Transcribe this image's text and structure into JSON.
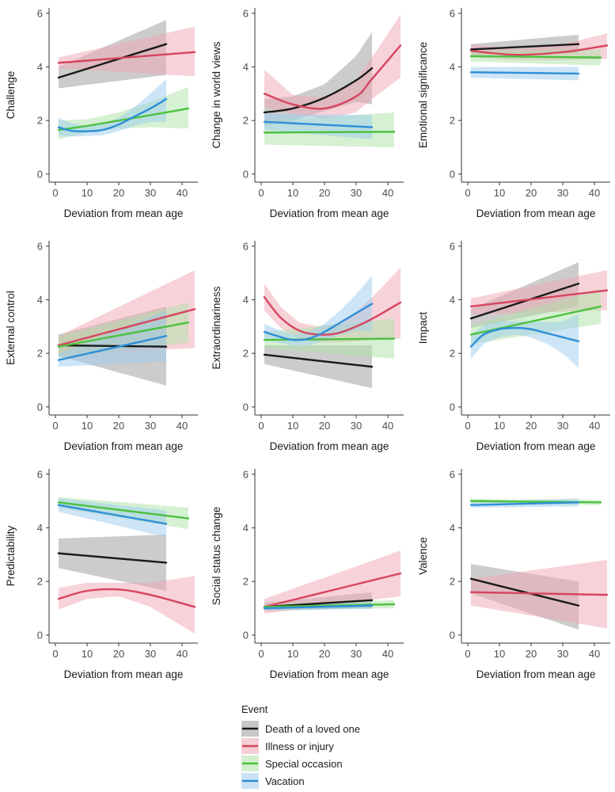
{
  "chart_data": {
    "type": "line",
    "description_type": "faceted smooth lines with confidence ribbons",
    "x_label": "Deviation from mean age",
    "x_ticks": [
      0,
      10,
      20,
      30,
      40
    ],
    "x_range": [
      -2,
      45
    ],
    "y_ticks": [
      0,
      2,
      4,
      6
    ],
    "y_range": [
      -0.3,
      6.2
    ],
    "legend": {
      "title": "Event",
      "entries": [
        {
          "name": "Death of a loved one",
          "color": "#1a1a1a",
          "band": "#9a9a9a"
        },
        {
          "name": "Illness or injury",
          "color": "#d6455f",
          "band": "#efa6b3"
        },
        {
          "name": "Special occasion",
          "color": "#4cc13f",
          "band": "#aee2a6"
        },
        {
          "name": "Vacation",
          "color": "#2e8fd6",
          "band": "#9cccee"
        }
      ]
    },
    "panels": [
      {
        "ylabel": "Challenge",
        "series": [
          {
            "event": "Death of a loved one",
            "x": [
              1,
              35
            ],
            "y": [
              3.6,
              4.85
            ],
            "lo": [
              3.2,
              3.7
            ],
            "hi": [
              4.0,
              5.75
            ]
          },
          {
            "event": "Illness or injury",
            "x": [
              1,
              44
            ],
            "y": [
              4.15,
              4.55
            ],
            "lo": [
              3.95,
              3.65
            ],
            "hi": [
              4.35,
              5.5
            ]
          },
          {
            "event": "Special occasion",
            "x": [
              1,
              10,
              20,
              30,
              42
            ],
            "y": [
              1.65,
              1.8,
              2.0,
              2.2,
              2.45
            ],
            "lo": [
              1.3,
              1.55,
              1.7,
              1.75,
              1.7
            ],
            "hi": [
              2.0,
              2.05,
              2.3,
              2.7,
              3.25
            ]
          },
          {
            "event": "Vacation",
            "x": [
              1,
              5,
              10,
              15,
              20,
              25,
              30,
              35
            ],
            "y": [
              1.75,
              1.62,
              1.6,
              1.65,
              1.85,
              2.15,
              2.45,
              2.8
            ],
            "lo": [
              1.45,
              1.4,
              1.42,
              1.45,
              1.6,
              1.8,
              1.95,
              1.95
            ],
            "hi": [
              2.1,
              1.9,
              1.8,
              1.85,
              2.1,
              2.5,
              3.0,
              3.55
            ]
          }
        ]
      },
      {
        "ylabel": "Change in world views",
        "series": [
          {
            "event": "Death of a loved one",
            "x": [
              1,
              10,
              20,
              30,
              35
            ],
            "y": [
              2.3,
              2.45,
              2.85,
              3.5,
              3.95
            ],
            "lo": [
              1.8,
              2.0,
              2.35,
              2.7,
              2.6
            ],
            "hi": [
              2.8,
              2.9,
              3.35,
              4.4,
              5.3
            ]
          },
          {
            "event": "Illness or injury",
            "x": [
              1,
              10,
              20,
              30,
              35,
              44
            ],
            "y": [
              3.0,
              2.6,
              2.45,
              2.9,
              3.55,
              4.8
            ],
            "lo": [
              2.5,
              2.25,
              2.05,
              2.3,
              2.8,
              3.6
            ],
            "hi": [
              3.9,
              2.95,
              2.85,
              3.5,
              4.35,
              5.95
            ]
          },
          {
            "event": "Special occasion",
            "x": [
              1,
              42
            ],
            "y": [
              1.55,
              1.58
            ],
            "lo": [
              1.1,
              1.0
            ],
            "hi": [
              2.0,
              2.3
            ]
          },
          {
            "event": "Vacation",
            "x": [
              1,
              35
            ],
            "y": [
              1.95,
              1.75
            ],
            "lo": [
              1.65,
              1.3
            ],
            "hi": [
              2.25,
              2.2
            ]
          }
        ]
      },
      {
        "ylabel": "Emotional significance",
        "series": [
          {
            "event": "Death of a loved one",
            "x": [
              1,
              35
            ],
            "y": [
              4.65,
              4.85
            ],
            "lo": [
              4.45,
              4.5
            ],
            "hi": [
              4.85,
              5.2
            ]
          },
          {
            "event": "Illness or injury",
            "x": [
              1,
              15,
              30,
              44
            ],
            "y": [
              4.6,
              4.45,
              4.55,
              4.8
            ],
            "lo": [
              4.35,
              4.25,
              4.25,
              4.3
            ],
            "hi": [
              4.85,
              4.65,
              4.85,
              5.25
            ]
          },
          {
            "event": "Special occasion",
            "x": [
              1,
              42
            ],
            "y": [
              4.4,
              4.35
            ],
            "lo": [
              4.2,
              4.05
            ],
            "hi": [
              4.6,
              4.65
            ]
          },
          {
            "event": "Vacation",
            "x": [
              1,
              35
            ],
            "y": [
              3.8,
              3.75
            ],
            "lo": [
              3.6,
              3.5
            ],
            "hi": [
              4.0,
              4.0
            ]
          }
        ]
      },
      {
        "ylabel": "External control",
        "series": [
          {
            "event": "Death of a loved one",
            "x": [
              1,
              35
            ],
            "y": [
              2.3,
              2.25
            ],
            "lo": [
              1.9,
              0.8
            ],
            "hi": [
              2.7,
              3.75
            ]
          },
          {
            "event": "Illness or injury",
            "x": [
              1,
              44
            ],
            "y": [
              2.3,
              3.65
            ],
            "lo": [
              1.95,
              2.2
            ],
            "hi": [
              2.65,
              5.1
            ]
          },
          {
            "event": "Special occasion",
            "x": [
              1,
              42
            ],
            "y": [
              2.25,
              3.15
            ],
            "lo": [
              1.85,
              2.4
            ],
            "hi": [
              2.65,
              3.9
            ]
          },
          {
            "event": "Vacation",
            "x": [
              1,
              35
            ],
            "y": [
              1.75,
              2.65
            ],
            "lo": [
              1.5,
              1.7
            ],
            "hi": [
              2.0,
              3.6
            ]
          }
        ]
      },
      {
        "ylabel": "Extraordinariness",
        "series": [
          {
            "event": "Death of a loved one",
            "x": [
              1,
              35
            ],
            "y": [
              1.95,
              1.5
            ],
            "lo": [
              1.6,
              0.7
            ],
            "hi": [
              2.3,
              2.3
            ]
          },
          {
            "event": "Illness or injury",
            "x": [
              1,
              6,
              12,
              18,
              24,
              30,
              36,
              44
            ],
            "y": [
              4.1,
              3.35,
              2.85,
              2.7,
              2.75,
              3.0,
              3.35,
              3.9
            ],
            "lo": [
              3.6,
              2.95,
              2.55,
              2.4,
              2.4,
              2.45,
              2.5,
              2.55
            ],
            "hi": [
              4.6,
              3.75,
              3.15,
              3.0,
              3.1,
              3.55,
              4.2,
              5.2
            ]
          },
          {
            "event": "Special occasion",
            "x": [
              1,
              42
            ],
            "y": [
              2.5,
              2.55
            ],
            "lo": [
              2.2,
              1.8
            ],
            "hi": [
              2.8,
              3.3
            ]
          },
          {
            "event": "Vacation",
            "x": [
              1,
              5,
              10,
              15,
              20,
              25,
              30,
              35
            ],
            "y": [
              2.8,
              2.65,
              2.5,
              2.55,
              2.8,
              3.15,
              3.5,
              3.85
            ],
            "lo": [
              2.5,
              2.4,
              2.3,
              2.3,
              2.5,
              2.7,
              2.85,
              2.8
            ],
            "hi": [
              3.1,
              2.9,
              2.7,
              2.8,
              3.1,
              3.6,
              4.2,
              4.9
            ]
          }
        ]
      },
      {
        "ylabel": "Impact",
        "series": [
          {
            "event": "Death of a loved one",
            "x": [
              1,
              35
            ],
            "y": [
              3.3,
              4.6
            ],
            "lo": [
              2.95,
              3.75
            ],
            "hi": [
              3.65,
              5.4
            ]
          },
          {
            "event": "Illness or injury",
            "x": [
              1,
              44
            ],
            "y": [
              3.75,
              4.35
            ],
            "lo": [
              3.45,
              3.6
            ],
            "hi": [
              4.05,
              5.1
            ]
          },
          {
            "event": "Special occasion",
            "x": [
              1,
              42
            ],
            "y": [
              2.7,
              3.75
            ],
            "lo": [
              2.35,
              3.1
            ],
            "hi": [
              3.05,
              4.4
            ]
          },
          {
            "event": "Vacation",
            "x": [
              1,
              5,
              10,
              15,
              20,
              25,
              30,
              35
            ],
            "y": [
              2.25,
              2.7,
              2.9,
              2.95,
              2.9,
              2.75,
              2.6,
              2.45
            ],
            "lo": [
              1.8,
              2.35,
              2.6,
              2.7,
              2.6,
              2.35,
              2.0,
              1.45
            ],
            "hi": [
              2.7,
              3.05,
              3.2,
              3.2,
              3.2,
              3.15,
              3.2,
              3.45
            ]
          }
        ]
      },
      {
        "ylabel": "Predictability",
        "series": [
          {
            "event": "Death of a loved one",
            "x": [
              1,
              35
            ],
            "y": [
              3.05,
              2.7
            ],
            "lo": [
              2.5,
              1.65
            ],
            "hi": [
              3.6,
              3.75
            ]
          },
          {
            "event": "Illness or injury",
            "x": [
              1,
              10,
              20,
              30,
              44
            ],
            "y": [
              1.35,
              1.65,
              1.7,
              1.5,
              1.05
            ],
            "lo": [
              0.95,
              1.35,
              1.45,
              1.05,
              0.05
            ],
            "hi": [
              1.75,
              1.95,
              1.95,
              1.95,
              2.2
            ]
          },
          {
            "event": "Special occasion",
            "x": [
              1,
              42
            ],
            "y": [
              4.95,
              4.35
            ],
            "lo": [
              4.75,
              3.95
            ],
            "hi": [
              5.15,
              4.75
            ]
          },
          {
            "event": "Vacation",
            "x": [
              1,
              35
            ],
            "y": [
              4.85,
              4.15
            ],
            "lo": [
              4.6,
              3.65
            ],
            "hi": [
              5.1,
              4.65
            ]
          }
        ]
      },
      {
        "ylabel": "Social status change",
        "series": [
          {
            "event": "Death of a loved one",
            "x": [
              1,
              35
            ],
            "y": [
              1.05,
              1.3
            ],
            "lo": [
              0.9,
              1.0
            ],
            "hi": [
              1.2,
              1.6
            ]
          },
          {
            "event": "Illness or injury",
            "x": [
              1,
              44
            ],
            "y": [
              1.05,
              2.3
            ],
            "lo": [
              0.8,
              1.45
            ],
            "hi": [
              1.35,
              3.15
            ]
          },
          {
            "event": "Special occasion",
            "x": [
              1,
              42
            ],
            "y": [
              1.05,
              1.15
            ],
            "lo": [
              0.95,
              1.0
            ],
            "hi": [
              1.15,
              1.3
            ]
          },
          {
            "event": "Vacation",
            "x": [
              1,
              35
            ],
            "y": [
              1.0,
              1.1
            ],
            "lo": [
              0.92,
              0.98
            ],
            "hi": [
              1.08,
              1.22
            ]
          }
        ]
      },
      {
        "ylabel": "Valence",
        "series": [
          {
            "event": "Death of a loved one",
            "x": [
              1,
              35
            ],
            "y": [
              2.1,
              1.1
            ],
            "lo": [
              1.55,
              0.2
            ],
            "hi": [
              2.65,
              2.0
            ]
          },
          {
            "event": "Illness or injury",
            "x": [
              1,
              44
            ],
            "y": [
              1.6,
              1.5
            ],
            "lo": [
              1.1,
              0.25
            ],
            "hi": [
              2.1,
              2.8
            ]
          },
          {
            "event": "Special occasion",
            "x": [
              1,
              42
            ],
            "y": [
              5.0,
              4.95
            ],
            "lo": [
              4.92,
              4.85
            ],
            "hi": [
              5.08,
              5.05
            ]
          },
          {
            "event": "Vacation",
            "x": [
              1,
              35
            ],
            "y": [
              4.85,
              4.95
            ],
            "lo": [
              4.75,
              4.8
            ],
            "hi": [
              4.95,
              5.1
            ]
          }
        ]
      }
    ]
  }
}
